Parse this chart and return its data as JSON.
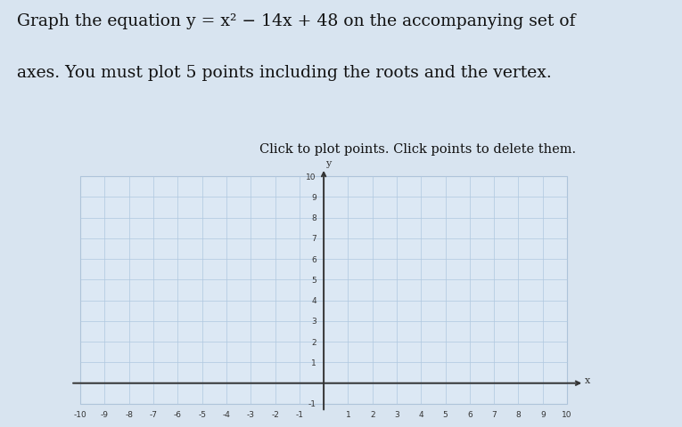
{
  "title_line1": "Graph the equation y = x² − 14x + 48 on the accompanying set of",
  "title_line2": "axes. You must plot 5 points including the roots and the vertex.",
  "subtitle_text": "Click to plot points. Click points to delete them.",
  "xlim": [
    -10,
    10
  ],
  "ylim": [
    -1,
    10
  ],
  "xticks": [
    -10,
    -9,
    -8,
    -7,
    -6,
    -5,
    -4,
    -3,
    -2,
    -1,
    1,
    2,
    3,
    4,
    5,
    6,
    7,
    8,
    9,
    10
  ],
  "yticks": [
    1,
    2,
    3,
    4,
    5,
    6,
    7,
    8,
    9,
    10
  ],
  "grid_color": "#b0c8e0",
  "grid_alpha": 0.85,
  "figure_bg": "#d8e4f0",
  "plot_bg": "#dce8f4",
  "axis_color": "#333333",
  "tick_fontsize": 6.5,
  "text_color": "#111111",
  "title_fontsize": 13.5,
  "subtitle_fontsize": 10.5,
  "border_color": "#aabbcc"
}
